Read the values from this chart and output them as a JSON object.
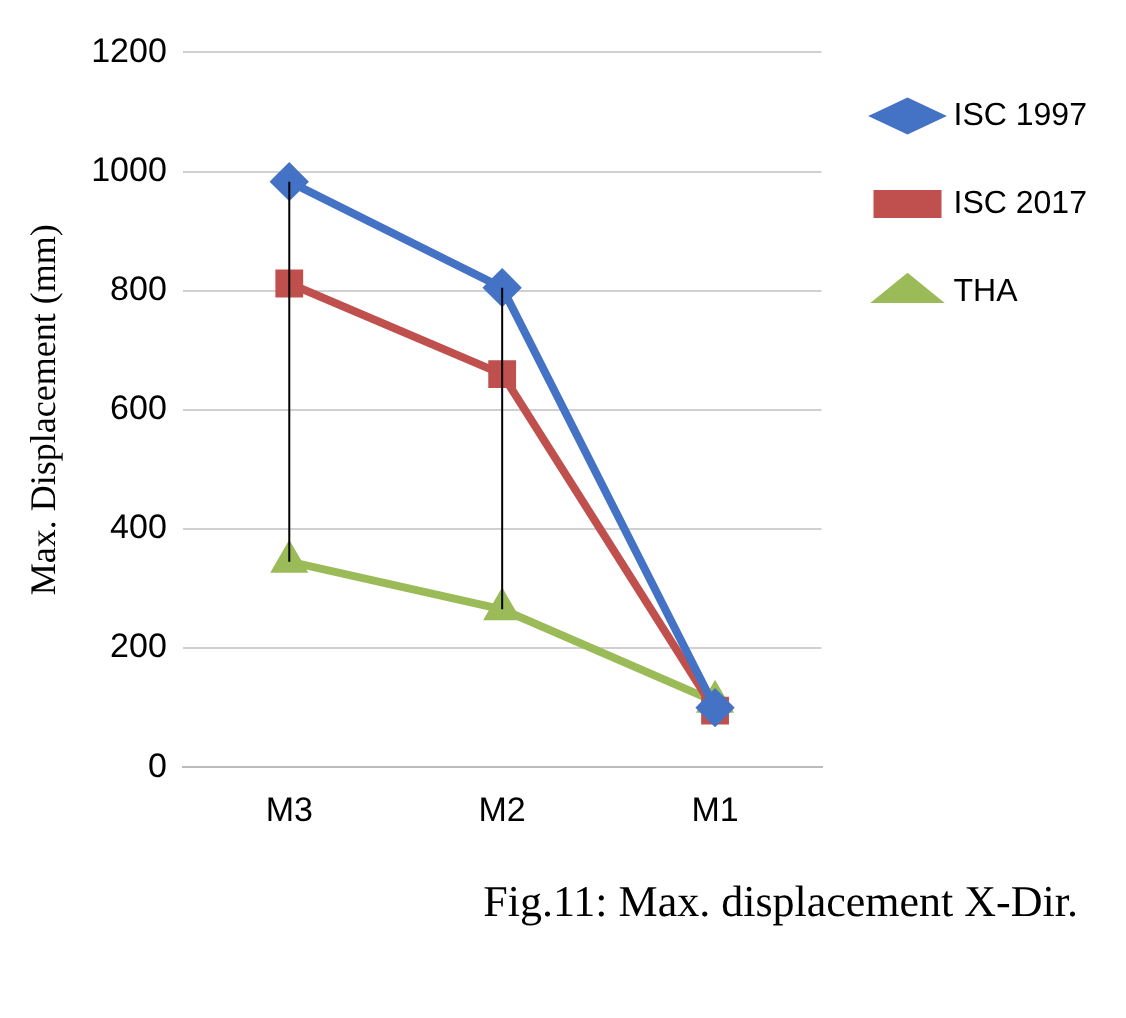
{
  "chart_data": {
    "type": "line",
    "ylabel": "Max. Displacement (mm)",
    "categories": [
      "M3",
      "M2",
      "M1"
    ],
    "series": [
      {
        "name": "ISC 1997",
        "color": "#4472c4",
        "marker": "diamond",
        "values": [
          983,
          805,
          100
        ]
      },
      {
        "name": "ISC 2017",
        "color": "#c0504d",
        "marker": "square",
        "values": [
          812,
          660,
          95
        ]
      },
      {
        "name": "THA",
        "color": "#9bbb59",
        "marker": "triangle",
        "values": [
          345,
          265,
          110
        ],
        "errors": [
          [
            345,
            983
          ],
          [
            265,
            805
          ],
          null
        ]
      }
    ],
    "ylim": [
      0,
      1200
    ],
    "yticks": [
      0,
      200,
      400,
      600,
      800,
      1000,
      1200
    ],
    "grid": "y",
    "legend": "top right",
    "line_style": "solid",
    "annotations": [
      "Fig.11: Max. displacement X-Dir."
    ]
  }
}
